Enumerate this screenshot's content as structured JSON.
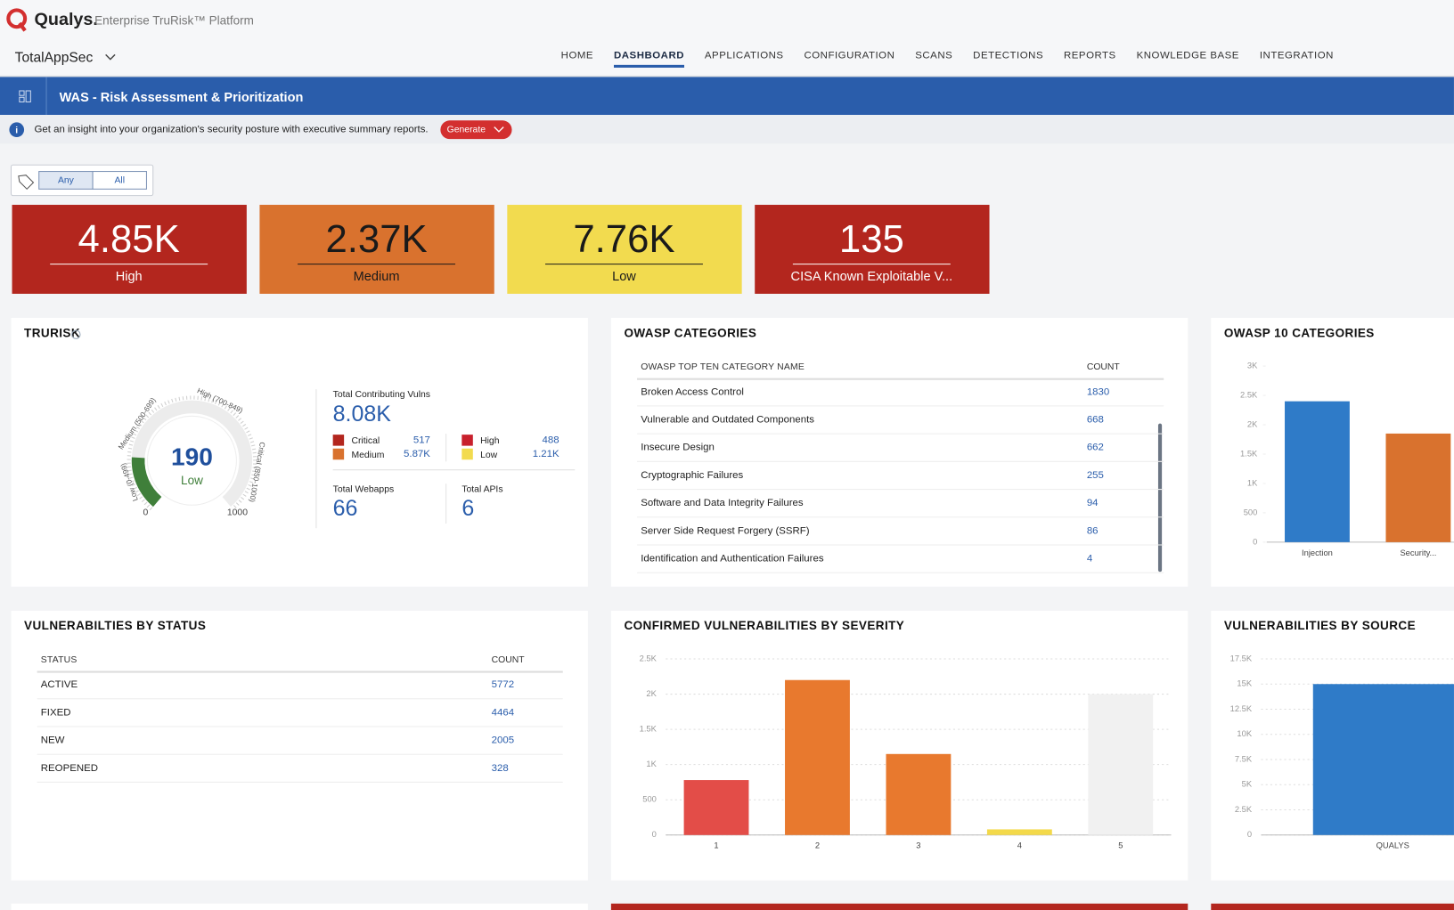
{
  "header": {
    "brand": "Qualys.",
    "product": "Enterprise TruRisk™ Platform",
    "app": "TotalAppSec",
    "nav": [
      "HOME",
      "DASHBOARD",
      "APPLICATIONS",
      "CONFIGURATION",
      "SCANS",
      "DETECTIONS",
      "REPORTS",
      "KNOWLEDGE BASE",
      "INTEGRATION"
    ]
  },
  "banner": {
    "title": "WAS - Risk Assessment & Prioritization"
  },
  "info": {
    "text": "Get an insight into your organization's security posture with executive summary reports.",
    "button": "Generate"
  },
  "filter": {
    "options": [
      "Any",
      "All"
    ]
  },
  "tiles": [
    {
      "value": "4.85K",
      "label": "High",
      "color": "#b3261e"
    },
    {
      "value": "2.37K",
      "label": "Medium",
      "color": "#d9722e"
    },
    {
      "value": "7.76K",
      "label": "Low",
      "color": "#f2db4f"
    },
    {
      "value": 135,
      "label": "CISA Known Exploitable V...",
      "color": "#b3261e"
    }
  ],
  "trurisk": {
    "title": "TRURISK",
    "score": 190,
    "level": "Low",
    "range": [
      0,
      1000
    ],
    "gauge_labels": [
      "Low (0-499)",
      "Medium (500-699)",
      "High (700-849)",
      "Critical (850-1000)"
    ],
    "total_label": "Total Contributing Vulns",
    "total": "8.08K",
    "breakdown": [
      {
        "name": "Critical",
        "value": 517,
        "color": "#b3261e"
      },
      {
        "name": "Medium",
        "value": "5.87K",
        "color": "#d9722e"
      },
      {
        "name": "High",
        "value": 488,
        "color": "#c8202c"
      },
      {
        "name": "Low",
        "value": "1.21K",
        "color": "#f2db4f"
      }
    ],
    "webapps_label": "Total Webapps",
    "webapps": 66,
    "apis_label": "Total APIs",
    "apis": 6
  },
  "owasp_table": {
    "title": "OWASP CATEGORIES",
    "columns": [
      "OWASP TOP TEN CATEGORY NAME",
      "COUNT"
    ],
    "rows": [
      [
        "Broken Access Control",
        1830
      ],
      [
        "Vulnerable and Outdated Components",
        668
      ],
      [
        "Insecure Design",
        662
      ],
      [
        "Cryptographic Failures",
        255
      ],
      [
        "Software and Data Integrity Failures",
        94
      ],
      [
        "Server Side Request Forgery (SSRF)",
        86
      ],
      [
        "Identification and Authentication Failures",
        4
      ]
    ]
  },
  "owasp10_chart": {
    "type": "bar",
    "title": "OWASP 10 CATEGORIES",
    "categories": [
      "Injection",
      "Security..."
    ],
    "values": [
      2400,
      1850
    ],
    "colors": [
      "#2f7bc8",
      "#d9722e"
    ],
    "ylim": [
      0,
      3000
    ],
    "yticks": [
      0,
      500,
      {
        "value": 1000,
        "label": "1K"
      },
      {
        "value": 1500,
        "label": "1.5K"
      },
      {
        "value": 2000,
        "label": "2K"
      },
      {
        "value": 2500,
        "label": "2.5K"
      },
      {
        "value": 3000,
        "label": "3K"
      }
    ],
    "grid": false
  },
  "status_table": {
    "title": "VULNERABILTIES BY STATUS",
    "columns": [
      "STATUS",
      "COUNT"
    ],
    "rows": [
      [
        "ACTIVE",
        5772
      ],
      [
        "FIXED",
        4464
      ],
      [
        "NEW",
        2005
      ],
      [
        "REOPENED",
        328
      ]
    ]
  },
  "severity_chart": {
    "type": "bar",
    "title": "CONFIRMED VULNERABILITIES BY SEVERITY",
    "categories": [
      "1",
      "2",
      "3",
      "4",
      "5"
    ],
    "values": [
      780,
      2200,
      1150,
      80,
      2000
    ],
    "colors": [
      "#e34d48",
      "#e8792e",
      "#e8792e",
      "#f3d94a",
      "#f1f1f1"
    ],
    "ylim": [
      0,
      2500
    ],
    "yticks": [
      0,
      500,
      {
        "value": 1000,
        "label": "1K"
      },
      {
        "value": 1500,
        "label": "1.5K"
      },
      {
        "value": 2000,
        "label": "2K"
      },
      {
        "value": 2500,
        "label": "2.5K"
      }
    ],
    "grid": true
  },
  "source_chart": {
    "type": "bar",
    "title": "VULNERABILITIES BY SOURCE",
    "categories": [
      "QUALYS"
    ],
    "values": [
      15000
    ],
    "colors": [
      "#2f7bc8"
    ],
    "ylim": [
      0,
      17500
    ],
    "yticks": [
      0,
      {
        "value": 2500,
        "label": "2.5K"
      },
      {
        "value": 5000,
        "label": "5K"
      },
      {
        "value": 7500,
        "label": "7.5K"
      },
      {
        "value": 10000,
        "label": "10K"
      },
      {
        "value": 12500,
        "label": "12.5K"
      },
      {
        "value": 15000,
        "label": "15K"
      },
      {
        "value": 17500,
        "label": "17.5K"
      }
    ],
    "grid": true
  }
}
